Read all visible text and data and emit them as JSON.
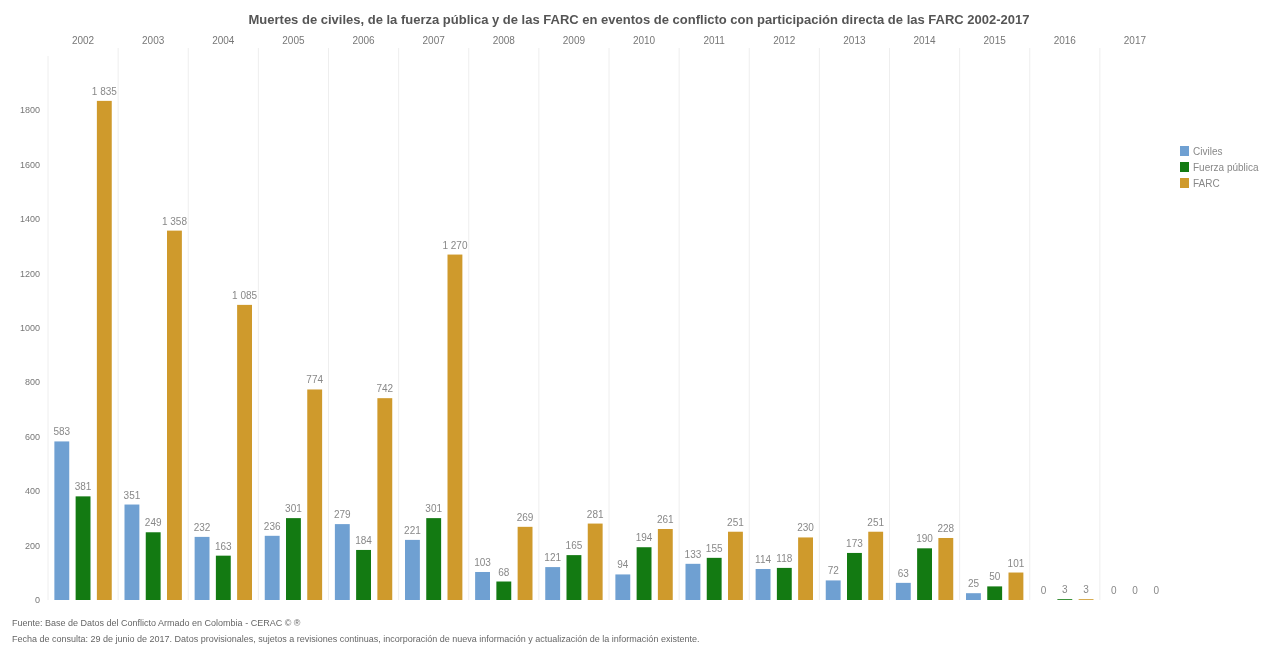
{
  "chart_data": {
    "type": "bar",
    "title": "Muertes de civiles, de la fuerza pública y de las FARC en eventos de conflicto con participación directa de las FARC 2002-2017",
    "categories": [
      "2002",
      "2003",
      "2004",
      "2005",
      "2006",
      "2007",
      "2008",
      "2009",
      "2010",
      "2011",
      "2012",
      "2013",
      "2014",
      "2015",
      "2016",
      "2017"
    ],
    "series": [
      {
        "name": "Civiles",
        "color": "#6fa0d2",
        "values": [
          583,
          351,
          232,
          236,
          279,
          221,
          103,
          121,
          94,
          133,
          114,
          72,
          63,
          25,
          0,
          0
        ]
      },
      {
        "name": "Fuerza pública",
        "color": "#137a12",
        "values": [
          381,
          249,
          163,
          301,
          184,
          301,
          68,
          165,
          194,
          155,
          118,
          173,
          190,
          50,
          3,
          0
        ]
      },
      {
        "name": "FARC",
        "color": "#cf9a2c",
        "values": [
          1835,
          1358,
          1085,
          774,
          742,
          1270,
          269,
          281,
          261,
          251,
          230,
          251,
          228,
          101,
          3,
          0
        ]
      }
    ],
    "value_labels": [
      [
        "583",
        "351",
        "232",
        "236",
        "279",
        "221",
        "103",
        "121",
        "94",
        "133",
        "114",
        "72",
        "63",
        "25",
        "0",
        "0"
      ],
      [
        "381",
        "249",
        "163",
        "301",
        "184",
        "301",
        "68",
        "165",
        "194",
        "155",
        "118",
        "173",
        "190",
        "50",
        "3",
        "0"
      ],
      [
        "1 835",
        "1 358",
        "1 085",
        "774",
        "742",
        "1 270",
        "269",
        "281",
        "261",
        "251",
        "230",
        "251",
        "228",
        "101",
        "3",
        "0"
      ]
    ],
    "ylim": [
      0,
      2000
    ],
    "yticks": [
      0,
      200,
      400,
      600,
      800,
      1000,
      1200,
      1400,
      1600,
      1800
    ],
    "legend": "right",
    "annotations": [
      "Fuente: Base de Datos del Conflicto Armado en Colombia - CERAC © ®",
      "Fecha de consulta: 29 de junio de 2017. Datos provisionales, sujetos a revisiones continuas, incorporación de nueva información y actualización de la información existente."
    ]
  }
}
